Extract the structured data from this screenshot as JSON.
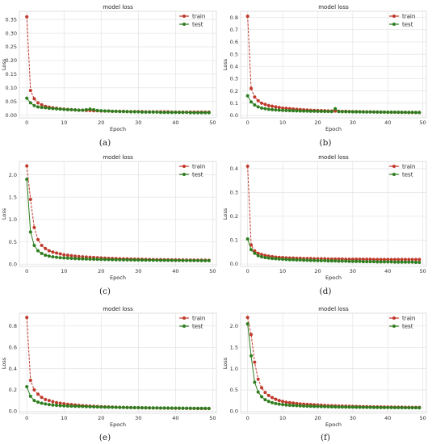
{
  "chart_data": [
    {
      "type": "line",
      "panel_label": "(a)",
      "title": "model loss",
      "xlabel": "Epoch",
      "ylabel": "Loss",
      "xlim": [
        -2,
        51
      ],
      "ylim": [
        -0.01,
        0.38
      ],
      "xticks": [
        0,
        10,
        20,
        30,
        40,
        50
      ],
      "xtick_labels": [
        "0",
        "10",
        "20",
        "30",
        "40",
        "50"
      ],
      "yticks": [
        0.0,
        0.05,
        0.1,
        0.15,
        0.2,
        0.25,
        0.3,
        0.35
      ],
      "ytick_labels": [
        "0.00",
        "0.05",
        "0.10",
        "0.15",
        "0.20",
        "0.25",
        "0.30",
        "0.35"
      ],
      "legend": "top-right",
      "series": [
        {
          "name": "train",
          "color": "#c0392b",
          "values": [
            0.36,
            0.09,
            0.06,
            0.045,
            0.038,
            0.032,
            0.029,
            0.027,
            0.025,
            0.023,
            0.022,
            0.021,
            0.02,
            0.019,
            0.018,
            0.018,
            0.017,
            0.017,
            0.016,
            0.016,
            0.015,
            0.015,
            0.015,
            0.014,
            0.014,
            0.014,
            0.014,
            0.013,
            0.013,
            0.013,
            0.013,
            0.013,
            0.012,
            0.012,
            0.012,
            0.012,
            0.012,
            0.012,
            0.012,
            0.011,
            0.011,
            0.011,
            0.011,
            0.011,
            0.011,
            0.011,
            0.011,
            0.011,
            0.011,
            0.011
          ]
        },
        {
          "name": "test",
          "color": "#2e7d1e",
          "values": [
            0.062,
            0.045,
            0.035,
            0.03,
            0.028,
            0.027,
            0.025,
            0.024,
            0.023,
            0.022,
            0.021,
            0.02,
            0.02,
            0.019,
            0.018,
            0.018,
            0.02,
            0.022,
            0.02,
            0.017,
            0.016,
            0.015,
            0.015,
            0.014,
            0.014,
            0.013,
            0.013,
            0.013,
            0.012,
            0.012,
            0.012,
            0.011,
            0.011,
            0.011,
            0.011,
            0.011,
            0.01,
            0.01,
            0.01,
            0.01,
            0.01,
            0.01,
            0.01,
            0.01,
            0.009,
            0.009,
            0.009,
            0.009,
            0.009,
            0.009
          ]
        }
      ]
    },
    {
      "type": "line",
      "panel_label": "(b)",
      "title": "model loss",
      "xlabel": "Epoch",
      "ylabel": "Loss",
      "xlim": [
        -2,
        51
      ],
      "ylim": [
        -0.02,
        0.85
      ],
      "xticks": [
        0,
        10,
        20,
        30,
        40,
        50
      ],
      "xtick_labels": [
        "0",
        "10",
        "20",
        "30",
        "40",
        "50"
      ],
      "yticks": [
        0.0,
        0.1,
        0.2,
        0.3,
        0.4,
        0.5,
        0.6,
        0.7,
        0.8
      ],
      "ytick_labels": [
        "0.0",
        "0.1",
        "0.2",
        "0.3",
        "0.4",
        "0.5",
        "0.6",
        "0.7",
        "0.8"
      ],
      "legend": "top-right",
      "series": [
        {
          "name": "train",
          "color": "#c0392b",
          "values": [
            0.81,
            0.22,
            0.15,
            0.12,
            0.1,
            0.09,
            0.08,
            0.075,
            0.07,
            0.065,
            0.06,
            0.058,
            0.055,
            0.052,
            0.05,
            0.048,
            0.046,
            0.044,
            0.042,
            0.041,
            0.04,
            0.039,
            0.038,
            0.037,
            0.036,
            0.035,
            0.034,
            0.033,
            0.033,
            0.032,
            0.031,
            0.031,
            0.03,
            0.03,
            0.029,
            0.029,
            0.028,
            0.028,
            0.027,
            0.027,
            0.026,
            0.026,
            0.026,
            0.025,
            0.025,
            0.025,
            0.024,
            0.024,
            0.024,
            0.024
          ]
        },
        {
          "name": "test",
          "color": "#2e7d1e",
          "values": [
            0.16,
            0.11,
            0.085,
            0.07,
            0.06,
            0.055,
            0.05,
            0.047,
            0.045,
            0.043,
            0.041,
            0.04,
            0.039,
            0.038,
            0.037,
            0.036,
            0.035,
            0.035,
            0.034,
            0.034,
            0.033,
            0.033,
            0.032,
            0.032,
            0.031,
            0.055,
            0.031,
            0.03,
            0.03,
            0.03,
            0.029,
            0.029,
            0.029,
            0.028,
            0.028,
            0.028,
            0.028,
            0.027,
            0.027,
            0.027,
            0.026,
            0.026,
            0.026,
            0.026,
            0.025,
            0.025,
            0.025,
            0.025,
            0.024,
            0.024
          ]
        }
      ]
    },
    {
      "type": "line",
      "panel_label": "(c)",
      "title": "model loss",
      "xlabel": "Epoch",
      "ylabel": "Loss",
      "xlim": [
        -2,
        51
      ],
      "ylim": [
        -0.05,
        2.3
      ],
      "xticks": [
        0,
        10,
        20,
        30,
        40,
        50
      ],
      "xtick_labels": [
        "0",
        "10",
        "20",
        "30",
        "40",
        "50"
      ],
      "yticks": [
        0.0,
        0.5,
        1.0,
        1.5,
        2.0
      ],
      "ytick_labels": [
        "0.0",
        "0.5",
        "1.0",
        "1.5",
        "2.0"
      ],
      "legend": "top-right",
      "series": [
        {
          "name": "train",
          "color": "#c0392b",
          "values": [
            2.2,
            1.45,
            0.82,
            0.55,
            0.42,
            0.35,
            0.3,
            0.27,
            0.25,
            0.23,
            0.21,
            0.2,
            0.19,
            0.18,
            0.17,
            0.165,
            0.16,
            0.155,
            0.15,
            0.145,
            0.14,
            0.135,
            0.13,
            0.128,
            0.125,
            0.122,
            0.12,
            0.118,
            0.115,
            0.113,
            0.111,
            0.109,
            0.107,
            0.105,
            0.103,
            0.102,
            0.1,
            0.099,
            0.098,
            0.097,
            0.096,
            0.095,
            0.094,
            0.093,
            0.092,
            0.091,
            0.09,
            0.09,
            0.089,
            0.088
          ]
        },
        {
          "name": "test",
          "color": "#2e7d1e",
          "values": [
            1.9,
            0.72,
            0.42,
            0.3,
            0.24,
            0.2,
            0.18,
            0.165,
            0.155,
            0.145,
            0.14,
            0.135,
            0.13,
            0.125,
            0.12,
            0.118,
            0.115,
            0.112,
            0.11,
            0.108,
            0.106,
            0.104,
            0.102,
            0.1,
            0.098,
            0.097,
            0.096,
            0.095,
            0.094,
            0.093,
            0.092,
            0.091,
            0.09,
            0.089,
            0.088,
            0.087,
            0.086,
            0.085,
            0.085,
            0.084,
            0.083,
            0.083,
            0.082,
            0.081,
            0.081,
            0.08,
            0.08,
            0.079,
            0.079,
            0.078
          ]
        }
      ]
    },
    {
      "type": "line",
      "panel_label": "(d)",
      "title": "model loss",
      "xlabel": "Epoch",
      "ylabel": "Loss",
      "xlim": [
        -2,
        51
      ],
      "ylim": [
        -0.01,
        0.43
      ],
      "xticks": [
        0,
        10,
        20,
        30,
        40,
        50
      ],
      "xtick_labels": [
        "0",
        "10",
        "20",
        "30",
        "40",
        "50"
      ],
      "yticks": [
        0.0,
        0.1,
        0.2,
        0.3,
        0.4
      ],
      "ytick_labels": [
        "0.0",
        "0.1",
        "0.2",
        "0.3",
        "0.4"
      ],
      "legend": "top-right",
      "series": [
        {
          "name": "train",
          "color": "#c0392b",
          "values": [
            0.41,
            0.08,
            0.055,
            0.045,
            0.04,
            0.036,
            0.033,
            0.031,
            0.029,
            0.028,
            0.027,
            0.026,
            0.025,
            0.025,
            0.024,
            0.024,
            0.023,
            0.023,
            0.023,
            0.022,
            0.022,
            0.022,
            0.022,
            0.021,
            0.021,
            0.021,
            0.021,
            0.021,
            0.02,
            0.02,
            0.02,
            0.02,
            0.02,
            0.02,
            0.02,
            0.02,
            0.019,
            0.019,
            0.019,
            0.019,
            0.019,
            0.019,
            0.019,
            0.019,
            0.019,
            0.019,
            0.019,
            0.019,
            0.019,
            0.019
          ]
        },
        {
          "name": "test",
          "color": "#2e7d1e",
          "values": [
            0.105,
            0.06,
            0.045,
            0.035,
            0.03,
            0.027,
            0.025,
            0.023,
            0.022,
            0.021,
            0.02,
            0.019,
            0.018,
            0.018,
            0.017,
            0.017,
            0.016,
            0.016,
            0.015,
            0.015,
            0.014,
            0.014,
            0.014,
            0.013,
            0.013,
            0.013,
            0.012,
            0.012,
            0.012,
            0.011,
            0.011,
            0.011,
            0.011,
            0.01,
            0.01,
            0.01,
            0.01,
            0.009,
            0.009,
            0.009,
            0.009,
            0.009,
            0.008,
            0.008,
            0.008,
            0.008,
            0.008,
            0.008,
            0.007,
            0.007
          ]
        }
      ]
    },
    {
      "type": "line",
      "panel_label": "(e)",
      "title": "model loss",
      "xlabel": "Epoch",
      "ylabel": "Loss",
      "xlim": [
        -2,
        51
      ],
      "ylim": [
        -0.02,
        0.92
      ],
      "xticks": [
        0,
        10,
        20,
        30,
        40,
        50
      ],
      "xtick_labels": [
        "0",
        "10",
        "20",
        "30",
        "40",
        "50"
      ],
      "yticks": [
        0.0,
        0.2,
        0.4,
        0.6,
        0.8
      ],
      "ytick_labels": [
        "0.0",
        "0.2",
        "0.4",
        "0.6",
        "0.8"
      ],
      "legend": "top-right",
      "series": [
        {
          "name": "train",
          "color": "#c0392b",
          "values": [
            0.88,
            0.29,
            0.2,
            0.16,
            0.13,
            0.11,
            0.1,
            0.09,
            0.08,
            0.075,
            0.07,
            0.065,
            0.062,
            0.058,
            0.055,
            0.052,
            0.05,
            0.048,
            0.046,
            0.044,
            0.042,
            0.041,
            0.04,
            0.039,
            0.038,
            0.037,
            0.036,
            0.035,
            0.034,
            0.033,
            0.033,
            0.032,
            0.031,
            0.031,
            0.03,
            0.03,
            0.029,
            0.029,
            0.028,
            0.028,
            0.027,
            0.027,
            0.027,
            0.026,
            0.026,
            0.026,
            0.025,
            0.025,
            0.025,
            0.025
          ]
        },
        {
          "name": "test",
          "color": "#2e7d1e",
          "values": [
            0.23,
            0.14,
            0.1,
            0.085,
            0.075,
            0.068,
            0.062,
            0.058,
            0.055,
            0.052,
            0.05,
            0.048,
            0.047,
            0.046,
            0.045,
            0.044,
            0.043,
            0.042,
            0.041,
            0.04,
            0.039,
            0.038,
            0.037,
            0.037,
            0.036,
            0.035,
            0.035,
            0.034,
            0.034,
            0.033,
            0.033,
            0.032,
            0.032,
            0.031,
            0.031,
            0.031,
            0.03,
            0.03,
            0.03,
            0.029,
            0.029,
            0.029,
            0.028,
            0.028,
            0.028,
            0.027,
            0.027,
            0.027,
            0.027,
            0.026
          ]
        }
      ]
    },
    {
      "type": "line",
      "panel_label": "(f)",
      "title": "model loss",
      "xlabel": "Epoch",
      "ylabel": "Loss",
      "xlim": [
        -2,
        51
      ],
      "ylim": [
        -0.05,
        2.3
      ],
      "xticks": [
        0,
        10,
        20,
        30,
        40,
        50
      ],
      "xtick_labels": [
        "0",
        "10",
        "20",
        "30",
        "40",
        "50"
      ],
      "yticks": [
        0.0,
        0.5,
        1.0,
        1.5,
        2.0
      ],
      "ytick_labels": [
        "0.0",
        "0.5",
        "1.0",
        "1.5",
        "2.0"
      ],
      "legend": "top-right",
      "series": [
        {
          "name": "train",
          "color": "#c0392b",
          "values": [
            2.2,
            1.8,
            1.15,
            0.75,
            0.55,
            0.44,
            0.37,
            0.32,
            0.28,
            0.25,
            0.23,
            0.21,
            0.2,
            0.19,
            0.18,
            0.17,
            0.165,
            0.16,
            0.155,
            0.15,
            0.145,
            0.14,
            0.135,
            0.13,
            0.128,
            0.125,
            0.122,
            0.12,
            0.118,
            0.115,
            0.113,
            0.111,
            0.109,
            0.107,
            0.105,
            0.104,
            0.102,
            0.1,
            0.099,
            0.098,
            0.097,
            0.096,
            0.095,
            0.094,
            0.093,
            0.092,
            0.091,
            0.09,
            0.09,
            0.089
          ]
        },
        {
          "name": "test",
          "color": "#2e7d1e",
          "values": [
            2.05,
            1.3,
            0.68,
            0.45,
            0.34,
            0.27,
            0.23,
            0.2,
            0.18,
            0.165,
            0.155,
            0.145,
            0.14,
            0.135,
            0.13,
            0.125,
            0.12,
            0.118,
            0.115,
            0.112,
            0.11,
            0.108,
            0.106,
            0.104,
            0.102,
            0.1,
            0.098,
            0.097,
            0.096,
            0.095,
            0.094,
            0.093,
            0.092,
            0.091,
            0.09,
            0.089,
            0.088,
            0.087,
            0.086,
            0.085,
            0.085,
            0.084,
            0.083,
            0.083,
            0.082,
            0.081,
            0.081,
            0.08,
            0.08,
            0.079
          ]
        }
      ]
    }
  ]
}
